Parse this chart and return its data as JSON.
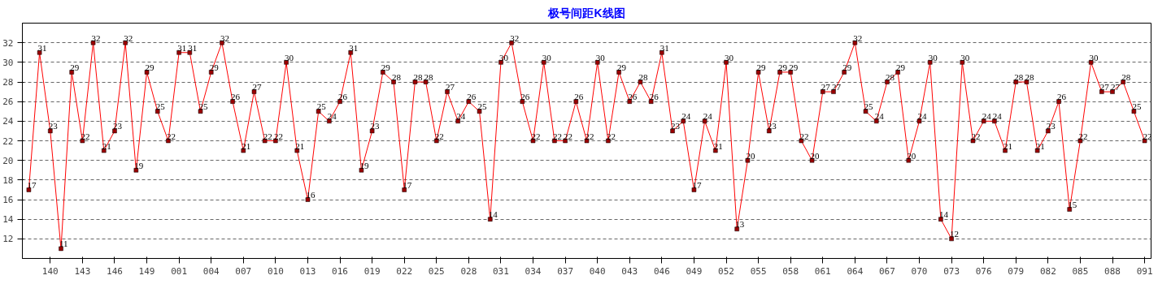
{
  "chart_data": {
    "type": "line",
    "title": "极号间距K线图",
    "categories": [
      null,
      null,
      "140",
      null,
      null,
      "143",
      null,
      null,
      "146",
      null,
      null,
      "149",
      null,
      null,
      "001",
      null,
      null,
      "004",
      null,
      null,
      "007",
      null,
      null,
      "010",
      null,
      null,
      "013",
      null,
      null,
      "016",
      null,
      null,
      "019",
      null,
      null,
      "022",
      null,
      null,
      "025",
      null,
      null,
      "028",
      null,
      null,
      "031",
      null,
      null,
      "034",
      null,
      null,
      "037",
      null,
      null,
      "040",
      null,
      null,
      "043",
      null,
      null,
      "046",
      null,
      null,
      "049",
      null,
      null,
      "052",
      null,
      null,
      "055",
      null,
      null,
      "058",
      null,
      null,
      "061",
      null,
      null,
      "064",
      null,
      null,
      "067",
      null,
      null,
      "070",
      null,
      null,
      "073",
      null,
      null,
      "076",
      null,
      null,
      "079",
      null,
      null,
      "082",
      null,
      null,
      "085",
      null,
      null,
      "088",
      null,
      null,
      "091"
    ],
    "series": [
      {
        "color": "#ff0000",
        "values": [
          17,
          31,
          23,
          11,
          29,
          22,
          32,
          21,
          23,
          32,
          19,
          29,
          25,
          22,
          31,
          31,
          25,
          29,
          32,
          26,
          21,
          27,
          22,
          22,
          30,
          21,
          16,
          25,
          24,
          26,
          31,
          19,
          23,
          29,
          28,
          17,
          28,
          28,
          22,
          27,
          24,
          26,
          25,
          14,
          30,
          32,
          26,
          22,
          30,
          22,
          22,
          26,
          22,
          30,
          22,
          29,
          26,
          28,
          26,
          31,
          23,
          24,
          17,
          24,
          21,
          30,
          13,
          20,
          29,
          23,
          29,
          29,
          22,
          20,
          27,
          27,
          29,
          32,
          25,
          24,
          28,
          29,
          20,
          24,
          30,
          14,
          12,
          30,
          22,
          24,
          24,
          21,
          28,
          28,
          21,
          23,
          26,
          15,
          22,
          30,
          27,
          27,
          28,
          25,
          22
        ]
      }
    ],
    "ylim": [
      10,
      34
    ],
    "yticks": [
      12,
      14,
      16,
      18,
      20,
      22,
      24,
      26,
      28,
      30,
      32
    ],
    "grid": "y",
    "marker": "square",
    "line_style": "solid",
    "data_labels": true
  }
}
